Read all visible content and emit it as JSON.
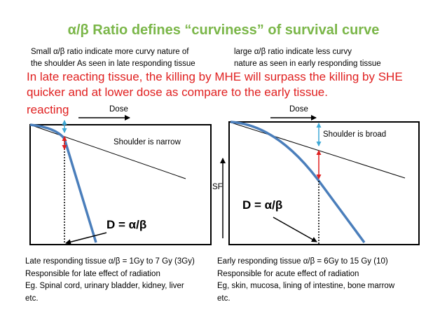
{
  "title": "α/β Ratio defines “curviness” of survival curve",
  "left_desc": [
    "Small α/β ratio indicate more curvy nature of",
    "the shoulder As seen in late responding tissue"
  ],
  "right_desc": [
    "large α/β ratio indicate less curvy",
    "nature as seen in early responding tissue"
  ],
  "red_note": "In late reacting tissue, the killing by MHE will surpass the killing by SHE quicker and at lower dose as compare to the early tissue.",
  "red_note_overlap": "reacting",
  "left_plot": {
    "dose_label": "Dose",
    "shoulder_label": "Shoulder is narrow",
    "d_label": "D = α/β"
  },
  "right_plot": {
    "dose_label": "Dose",
    "shoulder_label": "Shoulder is broad",
    "d_label": "D = α/β"
  },
  "sf_label": "SF",
  "left_footer": [
    "Late responding tissue α/β = 1Gy to 7 Gy (3Gy)",
    "Responsible for late effect of radiation",
    "Eg. Spinal cord, urinary bladder, kidney, liver",
    "etc."
  ],
  "right_footer": [
    "Early responding tissue α/β = 6Gy to 15 Gy (10)",
    "Responsible for acute effect of radiation",
    "Eg, skin, mucosa, lining of intestine, bone marrow",
    "etc."
  ],
  "colors": {
    "title": "#7ab648",
    "red_text": "#e02020",
    "curve": "#4a7ebb",
    "cyan_arrow": "#3fa9d6",
    "red_arrow": "#e02020"
  }
}
